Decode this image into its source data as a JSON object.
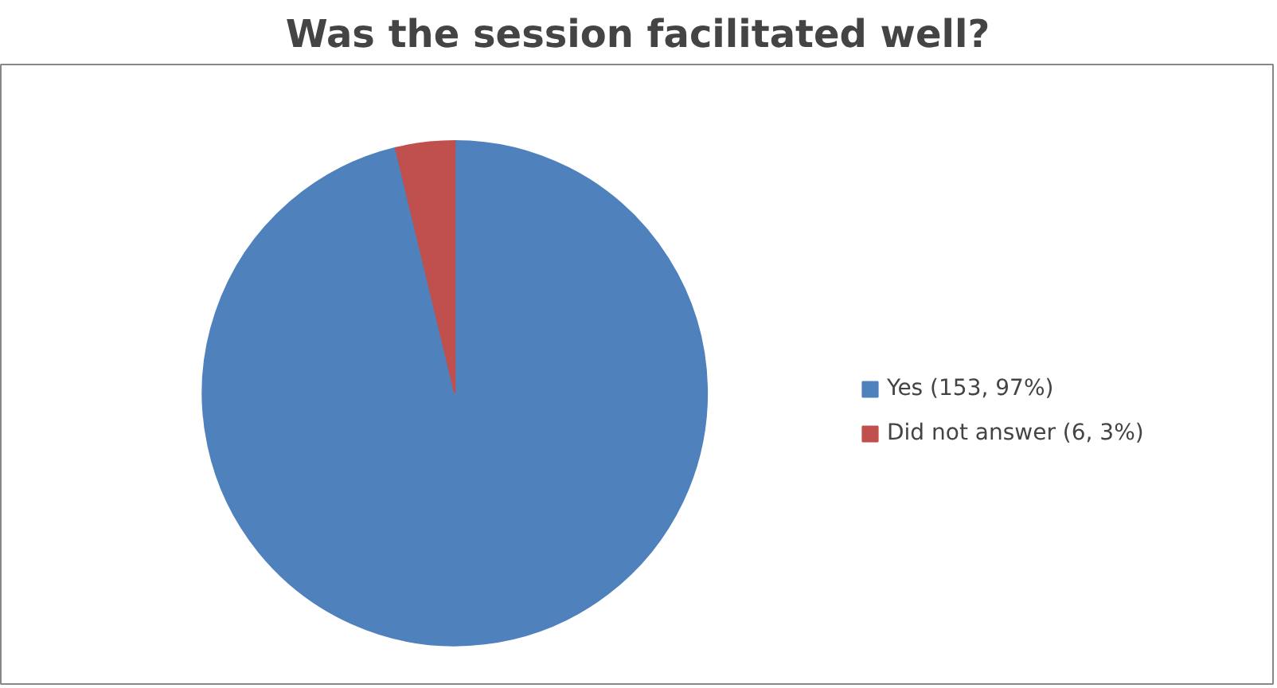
{
  "chart_data": {
    "type": "pie",
    "title": "Was the session facilitated well?",
    "categories": [
      "Yes (153, 97%)",
      "Did not answer (6, 3%)"
    ],
    "values": [
      153,
      6
    ],
    "colors": [
      "#4f81bd",
      "#c0504d"
    ],
    "legend": "right"
  }
}
